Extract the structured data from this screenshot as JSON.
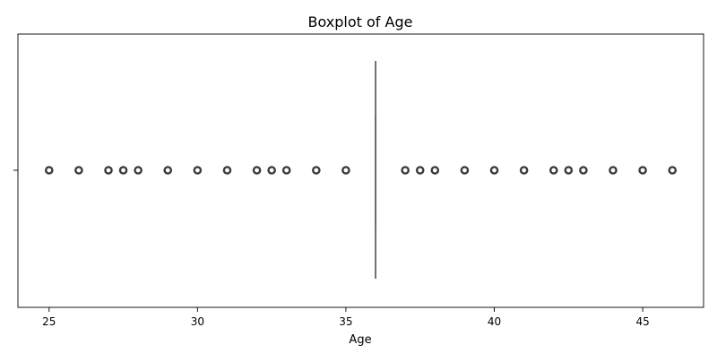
{
  "chart_data": {
    "type": "box",
    "title": "Boxplot of Age",
    "xlabel": "Age",
    "ylabel": "",
    "xlim": [
      23.95,
      47.05
    ],
    "xticks": [
      25,
      30,
      35,
      40,
      45
    ],
    "box": {
      "median": 36,
      "q1": 36,
      "q3": 36,
      "whisker_low": 36,
      "whisker_high": 36
    },
    "outliers": [
      25,
      26,
      27,
      27.5,
      28,
      29,
      30,
      31,
      32,
      32.5,
      33,
      34,
      35,
      37,
      37.5,
      38,
      39,
      40,
      41,
      42,
      42.5,
      43,
      44,
      45,
      46
    ],
    "grid": false,
    "colors": {
      "box_line": "#444444",
      "axis": "#000000",
      "outlier": "#3a3a3a"
    }
  }
}
